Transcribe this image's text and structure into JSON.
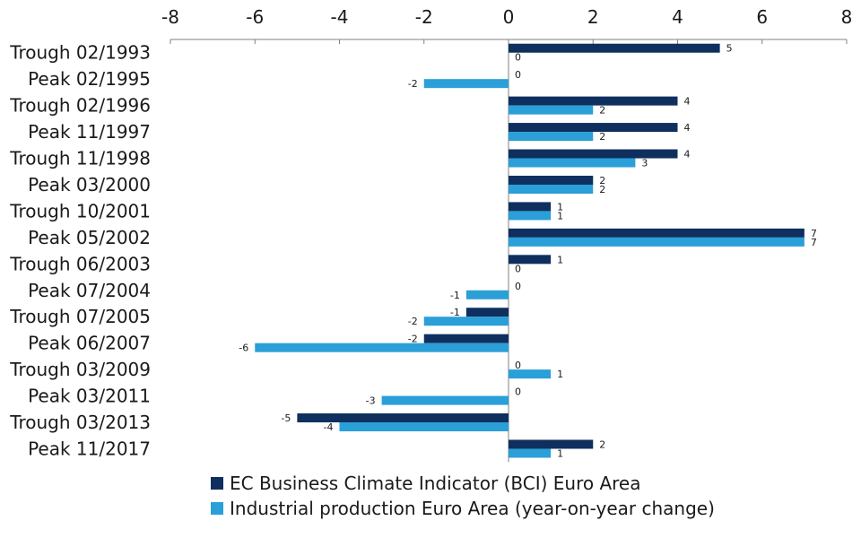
{
  "chart_data": {
    "type": "bar",
    "orientation": "horizontal",
    "xlim": [
      -8,
      8
    ],
    "x_ticks": [
      "-8",
      "-6",
      "-4",
      "-2",
      "0",
      "2",
      "4",
      "6",
      "8"
    ],
    "categories": [
      "Trough 02/1993",
      "Peak 02/1995",
      "Trough 02/1996",
      "Peak 11/1997",
      "Trough 11/1998",
      "Peak 03/2000",
      "Trough 10/2001",
      "Peak 05/2002",
      "Trough 06/2003",
      "Peak 07/2004",
      "Trough 07/2005",
      "Peak 06/2007",
      "Trough 03/2009",
      "Peak 03/2011",
      "Trough 03/2013",
      "Peak 11/2017"
    ],
    "series": [
      {
        "name": "EC Business Climate Indicator (BCI) Euro Area",
        "color": "#0f2f5e",
        "values": [
          5,
          0,
          4,
          4,
          4,
          2,
          1,
          7,
          1,
          0,
          -1,
          -2,
          0,
          0,
          -5,
          2
        ]
      },
      {
        "name": "Industrial production Euro Area (year-on-year change)",
        "color": "#2a9fd8",
        "values": [
          0,
          -2,
          2,
          2,
          3,
          2,
          1,
          7,
          0,
          -1,
          -2,
          -6,
          1,
          -3,
          -4,
          1
        ]
      }
    ],
    "grid": false,
    "axis_position": "top",
    "legend_position": "bottom"
  }
}
